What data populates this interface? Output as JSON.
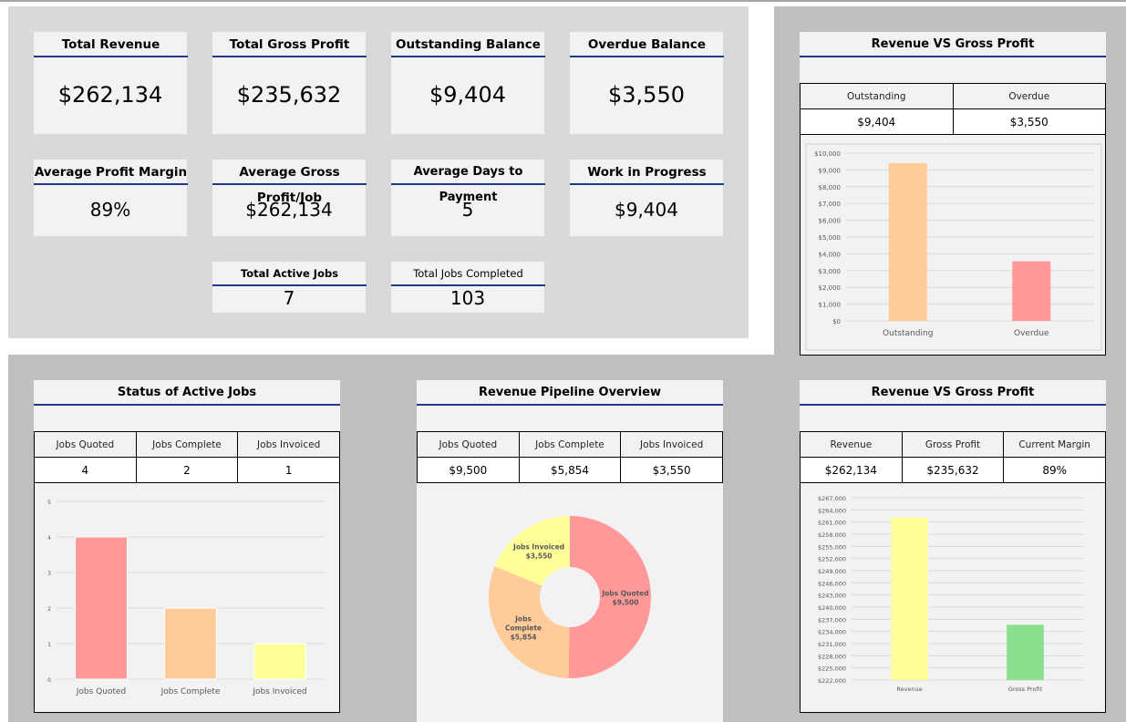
{
  "kpis": {
    "total_revenue": {
      "label": "Total Revenue",
      "value": "$262,134"
    },
    "total_gross_profit": {
      "label": "Total Gross Profit",
      "value": "$235,632"
    },
    "outstanding_balance": {
      "label": "Outstanding Balance",
      "value": "$9,404"
    },
    "overdue_balance": {
      "label": "Overdue Balance",
      "value": "$3,550"
    },
    "avg_profit_margin": {
      "label": "Average Profit Margin",
      "value": "89%"
    },
    "avg_gross_profit_job": {
      "label": "Average Gross Profit/Job",
      "value": "$262,134"
    },
    "avg_days_to_payment": {
      "label": "Average Days to Payment",
      "value": "5"
    },
    "work_in_progress": {
      "label": "Work in Progress",
      "value": "$9,404"
    },
    "total_active_jobs": {
      "label": "Total Active Jobs",
      "value": "7"
    },
    "total_jobs_completed": {
      "label": "Total Jobs Completed",
      "value": "103"
    }
  },
  "cards": {
    "outstanding_overdue": {
      "title": "Revenue VS Gross Profit",
      "headers": [
        "Outstanding",
        "Overdue"
      ],
      "values": [
        "$9,404",
        "$3,550"
      ]
    },
    "active_jobs": {
      "title": "Status of Active Jobs",
      "headers": [
        "Jobs Quoted",
        "Jobs Complete",
        "Jobs Invoiced"
      ],
      "values": [
        "4",
        "2",
        "1"
      ]
    },
    "pipeline": {
      "title": "Revenue Pipeline Overview",
      "headers": [
        "Jobs Quoted",
        "Jobs Complete",
        "Jobs Invoiced"
      ],
      "values": [
        "$9,500",
        "$5,854",
        "$3,550"
      ]
    },
    "revenue_profit": {
      "title": "Revenue VS Gross Profit",
      "headers": [
        "Revenue",
        "Gross Profit",
        "Current Margin"
      ],
      "values": [
        "$262,134",
        "$235,632",
        "89%"
      ]
    }
  },
  "chart_data": [
    {
      "id": "outstanding-overdue-chart",
      "type": "bar",
      "categories": [
        "Outstanding",
        "Overdue"
      ],
      "values": [
        9404,
        3550
      ],
      "colors": [
        "#ffcc99",
        "#ff9999"
      ],
      "ylim": [
        0,
        10000
      ],
      "yticks": [
        0,
        1000,
        2000,
        3000,
        4000,
        5000,
        6000,
        7000,
        8000,
        9000,
        10000
      ],
      "ytick_labels": [
        "$0",
        "$1,000",
        "$2,000",
        "$3,000",
        "$4,000",
        "$5,000",
        "$6,000",
        "$7,000",
        "$8,000",
        "$9,000",
        "$10,000"
      ],
      "grid": true
    },
    {
      "id": "active-jobs-chart",
      "type": "bar",
      "categories": [
        "Jobs Quoted",
        "Jobs Complete",
        "Jobs Invoiced"
      ],
      "values": [
        4,
        2,
        1
      ],
      "colors": [
        "#ff9999",
        "#ffcc99",
        "#ffff99"
      ],
      "ylim": [
        0,
        5
      ],
      "yticks": [
        0,
        1,
        2,
        3,
        4,
        5
      ],
      "ytick_labels": [
        "0",
        "1",
        "2",
        "3",
        "4",
        "5"
      ],
      "grid": true
    },
    {
      "id": "pipeline-chart",
      "type": "pie",
      "donut": true,
      "slices": [
        {
          "label": "Jobs Quoted",
          "value": 9500,
          "value_label": "$9,500",
          "color": "#ff9999"
        },
        {
          "label": "Jobs Complete",
          "value": 5854,
          "value_label": "$5,854",
          "color": "#ffcc99"
        },
        {
          "label": "Jobs Invoiced",
          "value": 3550,
          "value_label": "$3,550",
          "color": "#ffff99"
        }
      ]
    },
    {
      "id": "revenue-profit-chart",
      "type": "bar",
      "categories": [
        "Revenue",
        "Gross Profit"
      ],
      "values": [
        262134,
        235632
      ],
      "colors": [
        "#ffff99",
        "#88e08f"
      ],
      "ylim": [
        222000,
        267000
      ],
      "yticks": [
        222000,
        225000,
        228000,
        231000,
        234000,
        237000,
        240000,
        243000,
        246000,
        249000,
        252000,
        255000,
        258000,
        261000,
        264000,
        267000
      ],
      "ytick_labels": [
        "$222,000",
        "$225,000",
        "$228,000",
        "$231,000",
        "$234,000",
        "$237,000",
        "$240,000",
        "$243,000",
        "$246,000",
        "$249,000",
        "$252,000",
        "$255,000",
        "$258,000",
        "$261,000",
        "$264,000",
        "$267,000"
      ],
      "grid": true
    }
  ]
}
